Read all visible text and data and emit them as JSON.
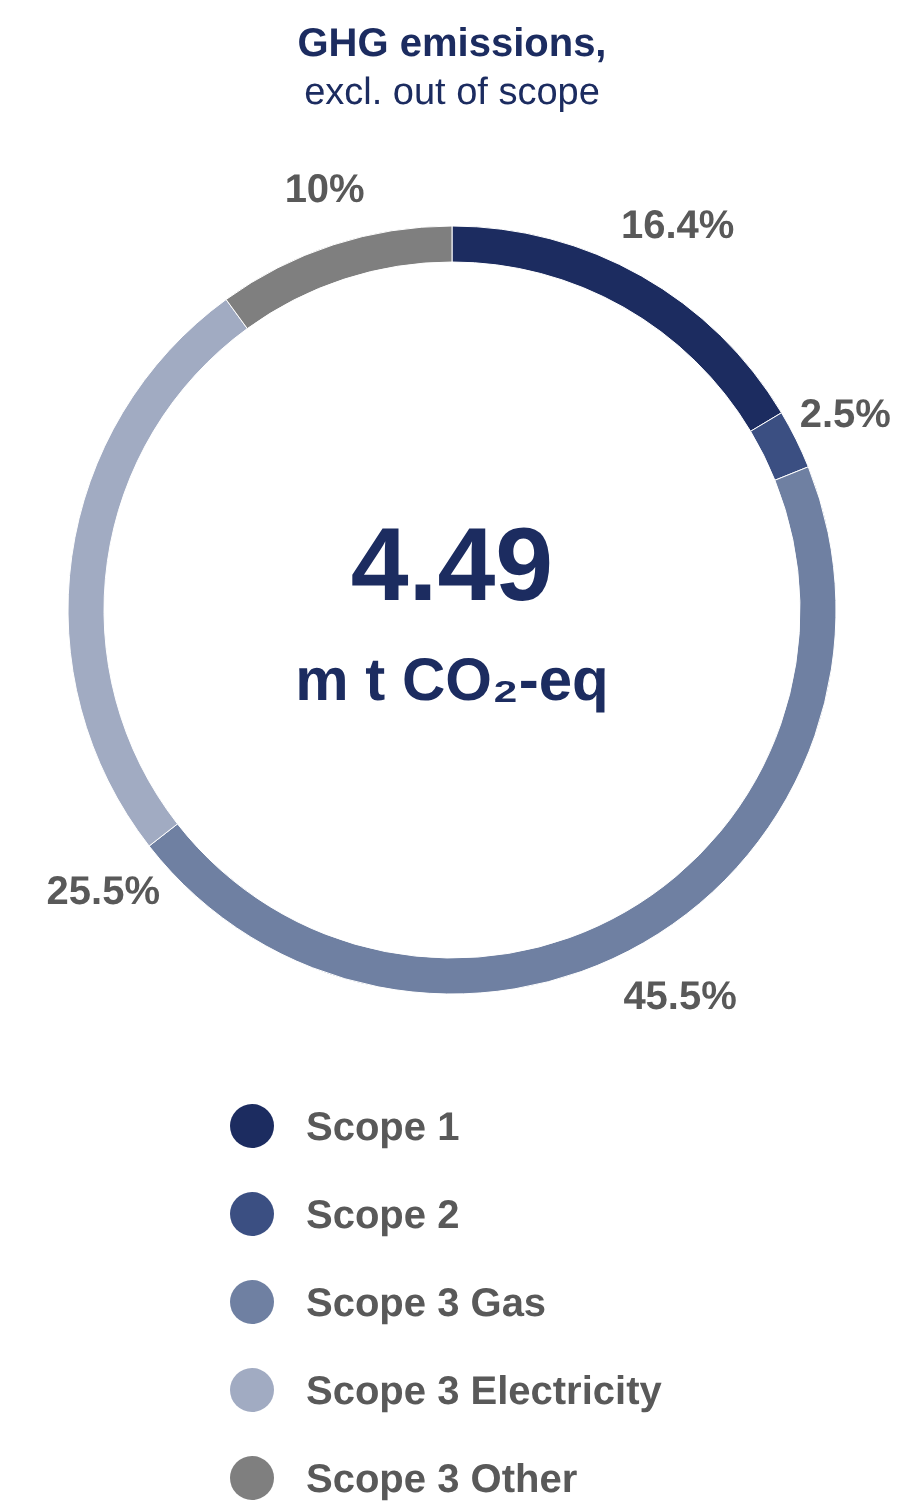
{
  "chart_data": {
    "type": "donut",
    "title": "GHG emissions,",
    "subtitle": "excl. out of scope",
    "categories": [
      "Scope 1",
      "Scope 2",
      "Scope 3 Gas",
      "Scope 3 Electricity",
      "Scope 3 Other"
    ],
    "values": [
      16.4,
      2.5,
      45.5,
      25.5,
      10
    ],
    "value_labels": [
      "16.4%",
      "2.5%",
      "45.5%",
      "25.5%",
      "10%"
    ],
    "colors": [
      "#1c2c60",
      "#3b4f82",
      "#6f80a2",
      "#a1abc2",
      "#7f7f7f"
    ],
    "annotations": [
      "4.49",
      "m t CO₂-eq"
    ],
    "legend": "bottom"
  }
}
